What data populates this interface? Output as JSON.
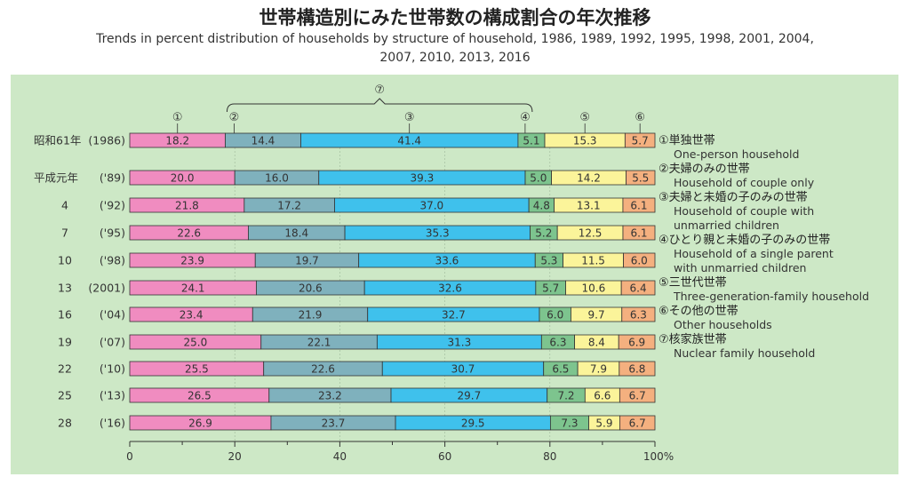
{
  "title_jp": "世帯構造別にみた世帯数の構成割合の年次推移",
  "subtitle_line1": "Trends in percent distribution of households by structure of household, 1986, 1989, 1992, 1995, 1998, 2001, 2004,",
  "subtitle_line2": "2007, 2010, 2013, 2016",
  "colors": {
    "background_panel": "#cde8c6",
    "one_person": "#f08cc0",
    "couple_only": "#7fb1bd",
    "couple_children": "#3fc1ec",
    "single_parent": "#7dc48e",
    "three_generation": "#fbf49a",
    "other": "#f4b07f"
  },
  "chart_data": {
    "type": "bar",
    "orientation": "horizontal-stacked-100",
    "xlim": [
      0,
      100
    ],
    "x_ticks": [
      "0",
      "20",
      "40",
      "60",
      "80",
      "100%"
    ],
    "category_labels": [
      {
        "era": "昭和61年",
        "year": "(1986)"
      },
      {
        "era": "平成元年",
        "year": "('89)"
      },
      {
        "era": "4",
        "year": "('92)"
      },
      {
        "era": "7",
        "year": "('95)"
      },
      {
        "era": "10",
        "year": "('98)"
      },
      {
        "era": "13",
        "year": "(2001)"
      },
      {
        "era": "16",
        "year": "('04)"
      },
      {
        "era": "19",
        "year": "('07)"
      },
      {
        "era": "22",
        "year": "('10)"
      },
      {
        "era": "25",
        "year": "('13)"
      },
      {
        "era": "28",
        "year": "('16)"
      }
    ],
    "column_markers": [
      "①",
      "②",
      "③",
      "④",
      "⑤",
      "⑥"
    ],
    "group_marker": "⑦",
    "series": [
      {
        "values": [
          18.2,
          20.0,
          21.8,
          22.6,
          23.9,
          24.1,
          23.4,
          25.0,
          25.5,
          26.5,
          26.9
        ]
      },
      {
        "values": [
          14.4,
          16.0,
          17.2,
          18.4,
          19.7,
          20.6,
          21.9,
          22.1,
          22.6,
          23.2,
          23.7
        ]
      },
      {
        "values": [
          41.4,
          39.3,
          37.0,
          35.3,
          33.6,
          32.6,
          32.7,
          31.3,
          30.7,
          29.7,
          29.5
        ]
      },
      {
        "values": [
          5.1,
          5.0,
          4.8,
          5.2,
          5.3,
          5.7,
          6.0,
          6.3,
          6.5,
          7.2,
          7.3
        ]
      },
      {
        "values": [
          15.3,
          14.2,
          13.1,
          12.5,
          11.5,
          10.6,
          9.7,
          8.4,
          7.9,
          6.6,
          5.9
        ]
      },
      {
        "values": [
          5.7,
          5.5,
          6.1,
          6.1,
          6.0,
          6.4,
          6.3,
          6.9,
          6.8,
          6.7,
          6.7
        ]
      }
    ],
    "legend": [
      {
        "jp": "①単独世帯",
        "en": [
          "One-person household"
        ]
      },
      {
        "jp": "②夫婦のみの世帯",
        "en": [
          "Household of couple only"
        ]
      },
      {
        "jp": "③夫婦と未婚の子のみの世帯",
        "en": [
          "Household of couple with",
          "unmarried children"
        ]
      },
      {
        "jp": "④ひとり親と未婚の子のみの世帯",
        "en": [
          "Household of a single parent",
          "with unmarried children"
        ]
      },
      {
        "jp": "⑤三世代世帯",
        "en": [
          "Three-generation-family household"
        ]
      },
      {
        "jp": "⑥その他の世帯",
        "en": [
          "Other households"
        ]
      },
      {
        "jp": "⑦核家族世帯",
        "en": [
          "Nuclear family household"
        ]
      }
    ]
  }
}
